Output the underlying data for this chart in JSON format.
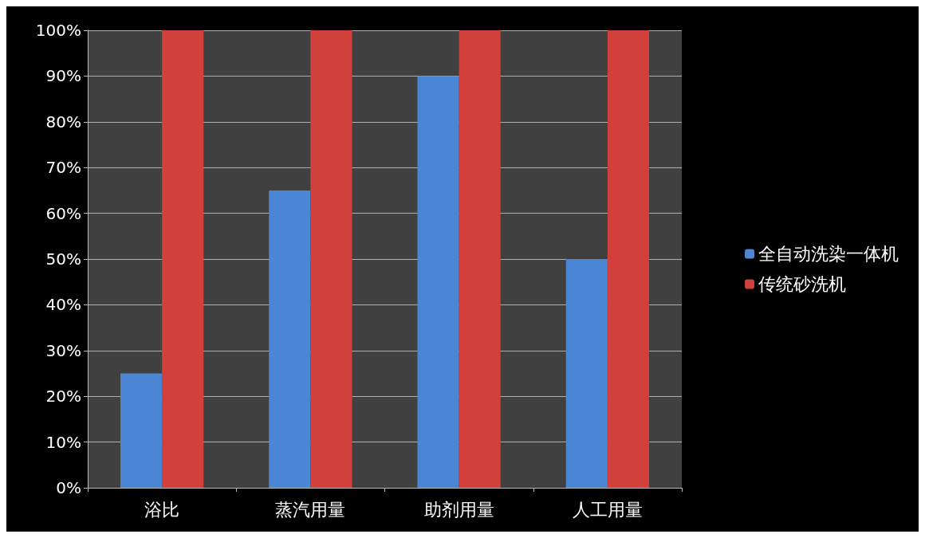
{
  "chart_data": {
    "type": "bar",
    "categories": [
      "浴比",
      "蒸汽用量",
      "助剂用量",
      "人工用量"
    ],
    "series": [
      {
        "name": "全自动洗染一体机",
        "color": "#4a86d4",
        "values": [
          25,
          65,
          90,
          50
        ]
      },
      {
        "name": "传统砂洗机",
        "color": "#d2403c",
        "values": [
          100,
          100,
          100,
          100
        ]
      }
    ],
    "ylim": [
      0,
      100
    ],
    "yticks": [
      {
        "value": 0,
        "label": "0%"
      },
      {
        "value": 10,
        "label": "10%"
      },
      {
        "value": 20,
        "label": "20%"
      },
      {
        "value": 30,
        "label": "30%"
      },
      {
        "value": 40,
        "label": "40%"
      },
      {
        "value": 50,
        "label": "50%"
      },
      {
        "value": 60,
        "label": "60%"
      },
      {
        "value": 70,
        "label": "70%"
      },
      {
        "value": 80,
        "label": "80%"
      },
      {
        "value": 90,
        "label": "90%"
      },
      {
        "value": 100,
        "label": "100%"
      }
    ],
    "grid": "y",
    "legend": "right"
  }
}
